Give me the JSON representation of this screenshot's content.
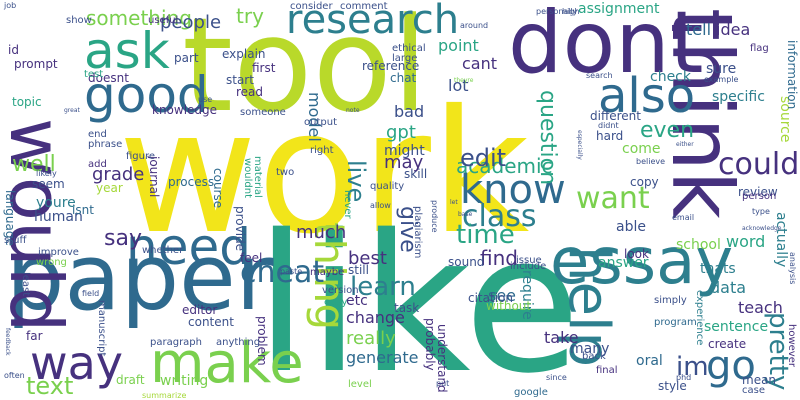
{
  "cloud": {
    "words": [
      {
        "text": "work",
        "color": "#f2e51a"
      },
      {
        "text": "like",
        "color": "#2aa585"
      },
      {
        "text": "tool",
        "color": "#b9d92a"
      },
      {
        "text": "paper",
        "color": "#2f6a8e"
      },
      {
        "text": "dont",
        "color": "#46317e"
      },
      {
        "text": "think",
        "color": "#46317e"
      },
      {
        "text": "would",
        "color": "#46317e"
      },
      {
        "text": "essay",
        "color": "#2d7f8e"
      },
      {
        "text": "make",
        "color": "#7ad04e"
      },
      {
        "text": "good",
        "color": "#2f6a8e"
      },
      {
        "text": "need",
        "color": "#2f6a8e"
      },
      {
        "text": "help",
        "color": "#2d7f8e"
      },
      {
        "text": "ask",
        "color": "#2aa585"
      },
      {
        "text": "also",
        "color": "#2f6a8e"
      },
      {
        "text": "way",
        "color": "#46317e"
      },
      {
        "text": "research",
        "color": "#2d7f8e"
      },
      {
        "text": "know",
        "color": "#2f6a8e"
      },
      {
        "text": "thing",
        "color": "#a6d83a"
      },
      {
        "text": "go",
        "color": "#2f6a8e"
      },
      {
        "text": "cheat",
        "color": "#2f6a8e"
      },
      {
        "text": "academic",
        "color": "#2aa585"
      },
      {
        "text": "edit",
        "color": "#3b508a"
      },
      {
        "text": "could",
        "color": "#46317e"
      },
      {
        "text": "class",
        "color": "#2d7f8e"
      },
      {
        "text": "time",
        "color": "#2aa585"
      },
      {
        "text": "want",
        "color": "#7ad04e"
      },
      {
        "text": "im",
        "color": "#3b508a"
      },
      {
        "text": "learn",
        "color": "#2d7f8e"
      },
      {
        "text": "pretty",
        "color": "#2d7f8e"
      },
      {
        "text": "text",
        "color": "#7ad04e"
      },
      {
        "text": "say",
        "color": "#46317e"
      },
      {
        "text": "well",
        "color": "#7ad04e"
      },
      {
        "text": "something",
        "color": "#7ad04e"
      },
      {
        "text": "people",
        "color": "#3b508a"
      },
      {
        "text": "try",
        "color": "#7ad04e"
      },
      {
        "text": "give",
        "color": "#3b508a"
      },
      {
        "text": "live",
        "color": "#2d7f8e"
      },
      {
        "text": "question",
        "color": "#2aa585"
      },
      {
        "text": "even",
        "color": "#2aa585"
      },
      {
        "text": "grade",
        "color": "#46317e"
      },
      {
        "text": "assignment",
        "color": "#2aa585"
      },
      {
        "text": "tell",
        "color": "#2f6a8e"
      },
      {
        "text": "idea",
        "color": "#46317e"
      },
      {
        "text": "sure",
        "color": "#3b508a"
      },
      {
        "text": "check",
        "color": "#2d7f8e"
      },
      {
        "text": "specific",
        "color": "#2d7f8e"
      },
      {
        "text": "source",
        "color": "#a6d83a"
      },
      {
        "text": "information",
        "color": "#2f6a8e"
      },
      {
        "text": "point",
        "color": "#2aa585"
      },
      {
        "text": "cant",
        "color": "#46317e"
      },
      {
        "text": "lot",
        "color": "#3b508a"
      },
      {
        "text": "bad",
        "color": "#3b508a"
      },
      {
        "text": "gpt",
        "color": "#2aa585"
      },
      {
        "text": "model",
        "color": "#2f6a8e"
      },
      {
        "text": "might",
        "color": "#3b508a"
      },
      {
        "text": "may",
        "color": "#46317e"
      },
      {
        "text": "much",
        "color": "#46317e"
      },
      {
        "text": "best",
        "color": "#46317e"
      },
      {
        "text": "change",
        "color": "#46317e"
      },
      {
        "text": "really",
        "color": "#7ad04e"
      },
      {
        "text": "etc",
        "color": "#46317e"
      },
      {
        "text": "generate",
        "color": "#2f6a8e"
      },
      {
        "text": "find",
        "color": "#46317e"
      },
      {
        "text": "see",
        "color": "#2f6a8e"
      },
      {
        "text": "take",
        "color": "#46317e"
      },
      {
        "text": "require",
        "color": "#2d7f8e"
      },
      {
        "text": "many",
        "color": "#3b508a"
      },
      {
        "text": "oral",
        "color": "#2f6a8e"
      },
      {
        "text": "teach",
        "color": "#46317e"
      },
      {
        "text": "sentence",
        "color": "#2aa585"
      },
      {
        "text": "data",
        "color": "#2d7f8e"
      },
      {
        "text": "word",
        "color": "#2aa585"
      },
      {
        "text": "thats",
        "color": "#2d7f8e"
      },
      {
        "text": "answer",
        "color": "#2aa585"
      },
      {
        "text": "able",
        "color": "#3b508a"
      },
      {
        "text": "school",
        "color": "#7ad04e"
      },
      {
        "text": "come",
        "color": "#7ad04e"
      },
      {
        "text": "copy",
        "color": "#3b508a"
      },
      {
        "text": "look",
        "color": "#46317e"
      },
      {
        "text": "review",
        "color": "#3b508a"
      },
      {
        "text": "actually",
        "color": "#2d7f8e"
      },
      {
        "text": "different",
        "color": "#3b508a"
      },
      {
        "text": "hard",
        "color": "#3b508a"
      },
      {
        "text": "language",
        "color": "#2f6a8e"
      },
      {
        "text": "youre",
        "color": "#2d7f8e"
      },
      {
        "text": "human",
        "color": "#3b508a"
      },
      {
        "text": "topic",
        "color": "#2aa585"
      },
      {
        "text": "prompt",
        "color": "#46317e"
      },
      {
        "text": "read",
        "color": "#46317e"
      },
      {
        "text": "start",
        "color": "#3b508a"
      },
      {
        "text": "chat",
        "color": "#2f6a8e"
      },
      {
        "text": "first",
        "color": "#46317e"
      },
      {
        "text": "explain",
        "color": "#3b508a"
      },
      {
        "text": "part",
        "color": "#3b508a"
      },
      {
        "text": "doesnt",
        "color": "#46317e"
      },
      {
        "text": "knowledge",
        "color": "#46317e"
      },
      {
        "text": "writing",
        "color": "#7ad04e"
      },
      {
        "text": "draft",
        "color": "#7ad04e"
      },
      {
        "text": "editor",
        "color": "#46317e"
      },
      {
        "text": "feel",
        "color": "#46317e"
      },
      {
        "text": "provide",
        "color": "#3b508a"
      },
      {
        "text": "problem",
        "color": "#46317e"
      },
      {
        "text": "content",
        "color": "#3b508a"
      },
      {
        "text": "process",
        "color": "#2f6a8e"
      },
      {
        "text": "course",
        "color": "#2f6a8e"
      },
      {
        "text": "journal",
        "color": "#46317e"
      },
      {
        "text": "year",
        "color": "#a6d83a"
      },
      {
        "text": "isnt",
        "color": "#2f6a8e"
      },
      {
        "text": "seem",
        "color": "#3b508a"
      },
      {
        "text": "stuff",
        "color": "#3b508a"
      },
      {
        "text": "reference",
        "color": "#3b508a"
      },
      {
        "text": "output",
        "color": "#3b508a"
      },
      {
        "text": "skill",
        "color": "#3b508a"
      },
      {
        "text": "still",
        "color": "#3b508a"
      },
      {
        "text": "task",
        "color": "#3b508a"
      },
      {
        "text": "sound",
        "color": "#3b508a"
      },
      {
        "text": "citation",
        "color": "#3b508a"
      },
      {
        "text": "probably",
        "color": "#46317e"
      },
      {
        "text": "understand",
        "color": "#46317e"
      },
      {
        "text": "without",
        "color": "#7ad04e"
      },
      {
        "text": "experience",
        "color": "#2d7f8e"
      },
      {
        "text": "create",
        "color": "#46317e"
      },
      {
        "text": "however",
        "color": "#46317e"
      },
      {
        "text": "mean",
        "color": "#3b508a"
      },
      {
        "text": "style",
        "color": "#3b508a"
      },
      {
        "text": "program",
        "color": "#2f6a8e"
      },
      {
        "text": "simply",
        "color": "#3b508a"
      },
      {
        "text": "final",
        "color": "#46317e"
      },
      {
        "text": "back",
        "color": "#3b508a"
      },
      {
        "text": "person",
        "color": "#46317e"
      },
      {
        "text": "flag",
        "color": "#46317e"
      },
      {
        "text": "ethical",
        "color": "#3b508a"
      },
      {
        "text": "large",
        "color": "#3b508a"
      },
      {
        "text": "comment",
        "color": "#3b508a"
      },
      {
        "text": "consider",
        "color": "#3b508a"
      },
      {
        "text": "someone",
        "color": "#3b508a"
      },
      {
        "text": "useful",
        "color": "#46317e"
      },
      {
        "text": "show",
        "color": "#3b508a"
      },
      {
        "text": "id",
        "color": "#46317e"
      },
      {
        "text": "test",
        "color": "#2aa585"
      },
      {
        "text": "end",
        "color": "#3b508a"
      },
      {
        "text": "phrase",
        "color": "#3b508a"
      },
      {
        "text": "add",
        "color": "#46317e"
      },
      {
        "text": "figure",
        "color": "#3b508a"
      },
      {
        "text": "material",
        "color": "#2aa585"
      },
      {
        "text": "wouldnt",
        "color": "#2aa585"
      },
      {
        "text": "two",
        "color": "#3b508a"
      },
      {
        "text": "right",
        "color": "#3b508a"
      },
      {
        "text": "never",
        "color": "#2aa585"
      },
      {
        "text": "plagiarism",
        "color": "#3b508a"
      },
      {
        "text": "quality",
        "color": "#3b508a"
      },
      {
        "text": "produce",
        "color": "#3b508a"
      },
      {
        "text": "include",
        "color": "#3b508a"
      },
      {
        "text": "issue",
        "color": "#3b508a"
      },
      {
        "text": "allow",
        "color": "#3b508a"
      },
      {
        "text": "easy",
        "color": "#2aa585"
      },
      {
        "text": "version",
        "color": "#3b508a"
      },
      {
        "text": "maybe",
        "color": "#46317e"
      },
      {
        "text": "paragraph",
        "color": "#3b508a"
      },
      {
        "text": "anything",
        "color": "#3b508a"
      },
      {
        "text": "manuscript",
        "color": "#3b508a"
      },
      {
        "text": "whether",
        "color": "#3b508a"
      },
      {
        "text": "improve",
        "color": "#3b508a"
      },
      {
        "text": "wrong",
        "color": "#7ad04e"
      },
      {
        "text": "least",
        "color": "#3b508a"
      },
      {
        "text": "far",
        "color": "#46317e"
      },
      {
        "text": "field",
        "color": "#3b508a"
      },
      {
        "text": "paste",
        "color": "#3b508a"
      },
      {
        "text": "put",
        "color": "#3b508a"
      },
      {
        "text": "level",
        "color": "#7ad04e"
      },
      {
        "text": "google",
        "color": "#2f6a8e"
      },
      {
        "text": "since",
        "color": "#3b508a"
      },
      {
        "text": "phd",
        "color": "#3b508a"
      },
      {
        "text": "case",
        "color": "#3b508a"
      },
      {
        "text": "often",
        "color": "#3b508a"
      },
      {
        "text": "summarize",
        "color": "#a6d83a"
      },
      {
        "text": "job",
        "color": "#3b508a"
      },
      {
        "text": "likely",
        "color": "#3b508a"
      },
      {
        "text": "use",
        "color": "#3b508a"
      },
      {
        "text": "personally",
        "color": "#3b508a"
      },
      {
        "text": "around",
        "color": "#3b508a"
      },
      {
        "text": "high",
        "color": "#3b508a"
      },
      {
        "text": "search",
        "color": "#3b508a"
      },
      {
        "text": "example",
        "color": "#3b508a"
      },
      {
        "text": "didnt",
        "color": "#3b508a"
      },
      {
        "text": "believe",
        "color": "#3b508a"
      },
      {
        "text": "email",
        "color": "#3b508a"
      },
      {
        "text": "type",
        "color": "#3b508a"
      },
      {
        "text": "acknowledge",
        "color": "#3b508a"
      },
      {
        "text": "analysis",
        "color": "#3b508a"
      },
      {
        "text": "note",
        "color": "#3b508a"
      },
      {
        "text": "base",
        "color": "#3b508a"
      },
      {
        "text": "let",
        "color": "#3b508a"
      },
      {
        "text": "theyre",
        "color": "#7ad04e"
      },
      {
        "text": "great",
        "color": "#3b508a"
      },
      {
        "text": "feedback",
        "color": "#3b508a"
      },
      {
        "text": "either",
        "color": "#3b508a"
      },
      {
        "text": "especially",
        "color": "#3b508a"
      }
    ]
  }
}
